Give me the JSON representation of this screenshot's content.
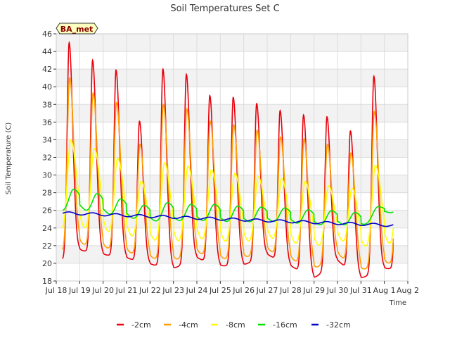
{
  "chart_data": {
    "type": "line",
    "title": "Soil Temperatures Set C",
    "xlabel": "Time",
    "ylabel": "Soil Temperature (C)",
    "badge": "BA_met",
    "x_ticks": [
      "Jul 18",
      "Jul 19",
      "Jul 20",
      "Jul 21",
      "Jul 22",
      "Jul 23",
      "Jul 24",
      "Jul 25",
      "Jul 26",
      "Jul 27",
      "Jul 28",
      "Jul 29",
      "Jul 30",
      "Jul 31",
      "Aug 1",
      "Aug 2"
    ],
    "y_ticks": [
      18,
      20,
      22,
      24,
      26,
      28,
      30,
      32,
      34,
      36,
      38,
      40,
      42,
      44,
      46
    ],
    "ylim": [
      18,
      46
    ],
    "xlim_days": [
      0,
      15
    ],
    "grid": true,
    "legend_position": "bottom-center",
    "series": [
      {
        "name": "-2cm",
        "color": "#e8000b",
        "peaks": [
          45.0,
          43.0,
          41.9,
          36.1,
          42.0,
          41.4,
          39.0,
          38.8,
          38.1,
          37.3,
          36.8,
          36.6,
          35.0,
          41.2
        ],
        "lows": [
          20.0,
          21.5,
          21.0,
          20.6,
          19.9,
          19.4,
          20.6,
          19.7,
          19.8,
          21.0,
          19.7,
          18.3,
          20.3,
          18.3,
          19.4
        ],
        "phase": 0.55,
        "width": 0.085
      },
      {
        "name": "-4cm",
        "color": "#ff9f00",
        "peaks": [
          41.0,
          39.3,
          38.2,
          33.5,
          38.0,
          37.5,
          36.1,
          35.7,
          35.1,
          34.3,
          34.1,
          33.5,
          32.5,
          37.2
        ],
        "lows": [
          21.0,
          22.2,
          21.8,
          21.3,
          20.6,
          20.3,
          21.2,
          20.5,
          20.6,
          21.5,
          20.5,
          19.3,
          21.0,
          19.2,
          20.0
        ],
        "phase": 0.57,
        "width": 0.1
      },
      {
        "name": "-8cm",
        "color": "#ffff00",
        "peaks": [
          34.0,
          33.0,
          31.9,
          29.3,
          31.4,
          31.0,
          30.6,
          30.2,
          29.8,
          29.6,
          29.3,
          28.8,
          28.5,
          31.1
        ],
        "lows": [
          23.2,
          23.6,
          23.2,
          22.8,
          22.3,
          22.0,
          22.4,
          22.1,
          22.0,
          22.6,
          22.0,
          21.5,
          22.4,
          21.5,
          21.8
        ],
        "phase": 0.62,
        "width": 0.14
      },
      {
        "name": "-16cm",
        "color": "#00e000",
        "peaks": [
          28.3,
          27.8,
          27.2,
          26.5,
          26.8,
          26.6,
          26.6,
          26.4,
          26.3,
          26.2,
          26.0,
          25.9,
          25.7,
          26.4
        ],
        "lows": [
          24.7,
          25.0,
          24.6,
          24.2,
          23.9,
          23.8,
          24.0,
          23.8,
          23.8,
          24.0,
          23.8,
          23.5,
          23.7,
          23.3,
          25.4
        ],
        "phase": 0.75,
        "width": 0.22
      },
      {
        "name": "-32cm",
        "color": "#0000c8",
        "start": 25.7,
        "end": 24.3,
        "amplitude": 0.15
      }
    ]
  }
}
